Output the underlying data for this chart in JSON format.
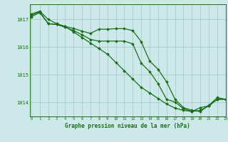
{
  "background_color": "#cce8e8",
  "grid_color": "#aacccc",
  "line_color": "#1a6e1a",
  "marker_color": "#1a6e1a",
  "xlabel": "Graphe pression niveau de la mer (hPa)",
  "ylim": [
    1013.5,
    1017.55
  ],
  "xlim": [
    -0.2,
    23
  ],
  "yticks": [
    1014,
    1015,
    1016,
    1017
  ],
  "xticks": [
    0,
    1,
    2,
    3,
    4,
    5,
    6,
    7,
    8,
    9,
    10,
    11,
    12,
    13,
    14,
    15,
    16,
    17,
    18,
    19,
    20,
    21,
    22,
    23
  ],
  "line1": {
    "x": [
      0,
      1,
      2,
      3,
      4,
      5,
      6,
      7,
      8,
      9,
      10,
      11,
      12,
      13,
      14,
      15,
      16,
      17,
      18,
      19,
      20,
      21,
      22,
      23
    ],
    "y": [
      1017.2,
      1017.3,
      1017.0,
      1016.85,
      1016.75,
      1016.55,
      1016.35,
      1016.15,
      1015.95,
      1015.75,
      1015.45,
      1015.15,
      1014.85,
      1014.55,
      1014.35,
      1014.15,
      1013.95,
      1013.8,
      1013.72,
      1013.68,
      1013.82,
      1013.88,
      1014.12,
      1014.12
    ]
  },
  "line2": {
    "x": [
      0,
      1,
      2,
      3,
      4,
      5,
      6,
      7,
      8,
      9,
      10,
      11,
      12,
      13,
      14,
      15,
      16,
      17,
      18,
      19,
      20,
      21,
      22,
      23
    ],
    "y": [
      1017.1,
      1017.25,
      1016.85,
      1016.82,
      1016.75,
      1016.68,
      1016.58,
      1016.5,
      1016.65,
      1016.65,
      1016.67,
      1016.67,
      1016.6,
      1016.2,
      1015.5,
      1015.2,
      1014.75,
      1014.12,
      1013.82,
      1013.72,
      1013.68,
      1013.9,
      1014.18,
      1014.12
    ]
  },
  "line3": {
    "x": [
      0,
      1,
      2,
      3,
      4,
      5,
      6,
      7,
      8,
      9,
      10,
      11,
      12,
      13,
      14,
      15,
      16,
      17,
      18,
      19,
      20,
      21,
      22,
      23
    ],
    "y": [
      1017.15,
      1017.28,
      1016.85,
      1016.82,
      1016.72,
      1016.6,
      1016.45,
      1016.28,
      1016.22,
      1016.22,
      1016.22,
      1016.22,
      1016.12,
      1015.42,
      1015.12,
      1014.68,
      1014.12,
      1014.02,
      1013.78,
      1013.68,
      1013.72,
      1013.88,
      1014.12,
      1014.12
    ]
  }
}
